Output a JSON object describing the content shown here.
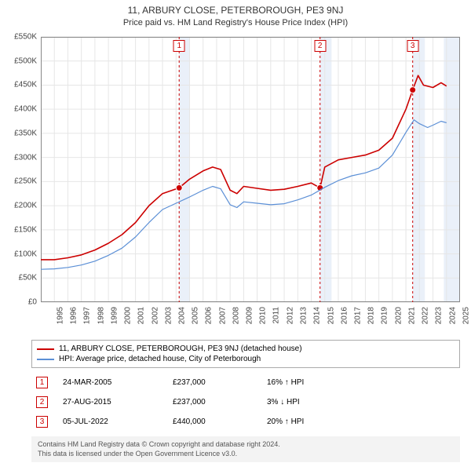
{
  "title": "11, ARBURY CLOSE, PETERBOROUGH, PE3 9NJ",
  "subtitle": "Price paid vs. HM Land Registry's House Price Index (HPI)",
  "chart": {
    "type": "line",
    "x_start": 1995,
    "x_end": 2026,
    "x_ticks": [
      1995,
      1996,
      1997,
      1998,
      1999,
      2000,
      2001,
      2002,
      2003,
      2004,
      2005,
      2006,
      2007,
      2008,
      2009,
      2010,
      2011,
      2012,
      2013,
      2014,
      2015,
      2016,
      2017,
      2018,
      2019,
      2020,
      2021,
      2022,
      2023,
      2024,
      2025
    ],
    "y_min": 0,
    "y_max": 550000,
    "y_ticks": [
      0,
      50000,
      100000,
      150000,
      200000,
      250000,
      300000,
      350000,
      400000,
      450000,
      500000,
      550000
    ],
    "y_tick_labels": [
      "£0",
      "£50K",
      "£100K",
      "£150K",
      "£200K",
      "£250K",
      "£300K",
      "£350K",
      "£400K",
      "£450K",
      "£500K",
      "£550K"
    ],
    "grid_color": "#e6e6e6",
    "axis_color": "#888888",
    "background_color": "#ffffff",
    "shaded_bands": [
      {
        "from": 2005.23,
        "to": 2006.0,
        "color": "#eaf0f9"
      },
      {
        "from": 2015.65,
        "to": 2016.5,
        "color": "#eaf0f9"
      },
      {
        "from": 2022.5,
        "to": 2023.4,
        "color": "#eaf0f9"
      },
      {
        "from": 2024.8,
        "to": 2026.0,
        "color": "#eaf0f9"
      }
    ],
    "event_lines": [
      {
        "x": 2005.23,
        "label": "1",
        "color": "#cc0000"
      },
      {
        "x": 2015.65,
        "label": "2",
        "color": "#cc0000"
      },
      {
        "x": 2022.5,
        "label": "3",
        "color": "#cc0000"
      }
    ],
    "series": [
      {
        "name": "price_paid",
        "label": "11, ARBURY CLOSE, PETERBOROUGH, PE3 9NJ (detached house)",
        "color": "#cc0000",
        "width": 1.6,
        "points": [
          [
            1995.0,
            88000
          ],
          [
            1996.0,
            88000
          ],
          [
            1997.0,
            92000
          ],
          [
            1998.0,
            98000
          ],
          [
            1999.0,
            108000
          ],
          [
            2000.0,
            122000
          ],
          [
            2001.0,
            140000
          ],
          [
            2002.0,
            165000
          ],
          [
            2003.0,
            200000
          ],
          [
            2004.0,
            225000
          ],
          [
            2005.23,
            237000
          ],
          [
            2006.0,
            255000
          ],
          [
            2007.0,
            272000
          ],
          [
            2007.7,
            280000
          ],
          [
            2008.3,
            275000
          ],
          [
            2009.0,
            232000
          ],
          [
            2009.5,
            225000
          ],
          [
            2010.0,
            240000
          ],
          [
            2011.0,
            236000
          ],
          [
            2012.0,
            232000
          ],
          [
            2013.0,
            234000
          ],
          [
            2014.0,
            240000
          ],
          [
            2015.0,
            247000
          ],
          [
            2015.65,
            237000
          ],
          [
            2016.0,
            280000
          ],
          [
            2017.0,
            295000
          ],
          [
            2018.0,
            300000
          ],
          [
            2019.0,
            305000
          ],
          [
            2020.0,
            315000
          ],
          [
            2021.0,
            340000
          ],
          [
            2022.0,
            400000
          ],
          [
            2022.5,
            440000
          ],
          [
            2022.9,
            470000
          ],
          [
            2023.3,
            450000
          ],
          [
            2024.0,
            445000
          ],
          [
            2024.6,
            455000
          ],
          [
            2025.0,
            448000
          ]
        ],
        "markers": [
          {
            "x": 2005.23,
            "y": 237000
          },
          {
            "x": 2015.65,
            "y": 237000
          },
          {
            "x": 2022.5,
            "y": 440000
          }
        ]
      },
      {
        "name": "hpi",
        "label": "HPI: Average price, detached house, City of Peterborough",
        "color": "#5b8fd6",
        "width": 1.2,
        "points": [
          [
            1995.0,
            68000
          ],
          [
            1996.0,
            69000
          ],
          [
            1997.0,
            72000
          ],
          [
            1998.0,
            77000
          ],
          [
            1999.0,
            85000
          ],
          [
            2000.0,
            97000
          ],
          [
            2001.0,
            112000
          ],
          [
            2002.0,
            135000
          ],
          [
            2003.0,
            165000
          ],
          [
            2004.0,
            192000
          ],
          [
            2005.0,
            205000
          ],
          [
            2006.0,
            218000
          ],
          [
            2007.0,
            232000
          ],
          [
            2007.7,
            240000
          ],
          [
            2008.3,
            235000
          ],
          [
            2009.0,
            202000
          ],
          [
            2009.5,
            196000
          ],
          [
            2010.0,
            208000
          ],
          [
            2011.0,
            205000
          ],
          [
            2012.0,
            202000
          ],
          [
            2013.0,
            204000
          ],
          [
            2014.0,
            212000
          ],
          [
            2015.0,
            222000
          ],
          [
            2016.0,
            238000
          ],
          [
            2017.0,
            252000
          ],
          [
            2018.0,
            262000
          ],
          [
            2019.0,
            268000
          ],
          [
            2020.0,
            278000
          ],
          [
            2021.0,
            305000
          ],
          [
            2022.0,
            352000
          ],
          [
            2022.6,
            378000
          ],
          [
            2023.0,
            370000
          ],
          [
            2023.6,
            362000
          ],
          [
            2024.0,
            367000
          ],
          [
            2024.6,
            375000
          ],
          [
            2025.0,
            372000
          ]
        ]
      }
    ]
  },
  "legend": [
    {
      "color": "#cc0000",
      "label": "11, ARBURY CLOSE, PETERBOROUGH, PE3 9NJ (detached house)"
    },
    {
      "color": "#5b8fd6",
      "label": "HPI: Average price, detached house, City of Peterborough"
    }
  ],
  "sales": [
    {
      "n": "1",
      "date": "24-MAR-2005",
      "price": "£237,000",
      "delta": "16% ↑ HPI",
      "color": "#cc0000"
    },
    {
      "n": "2",
      "date": "27-AUG-2015",
      "price": "£237,000",
      "delta": "3% ↓ HPI",
      "color": "#cc0000"
    },
    {
      "n": "3",
      "date": "05-JUL-2022",
      "price": "£440,000",
      "delta": "20% ↑ HPI",
      "color": "#cc0000"
    }
  ],
  "footnote_l1": "Contains HM Land Registry data © Crown copyright and database right 2024.",
  "footnote_l2": "This data is licensed under the Open Government Licence v3.0."
}
